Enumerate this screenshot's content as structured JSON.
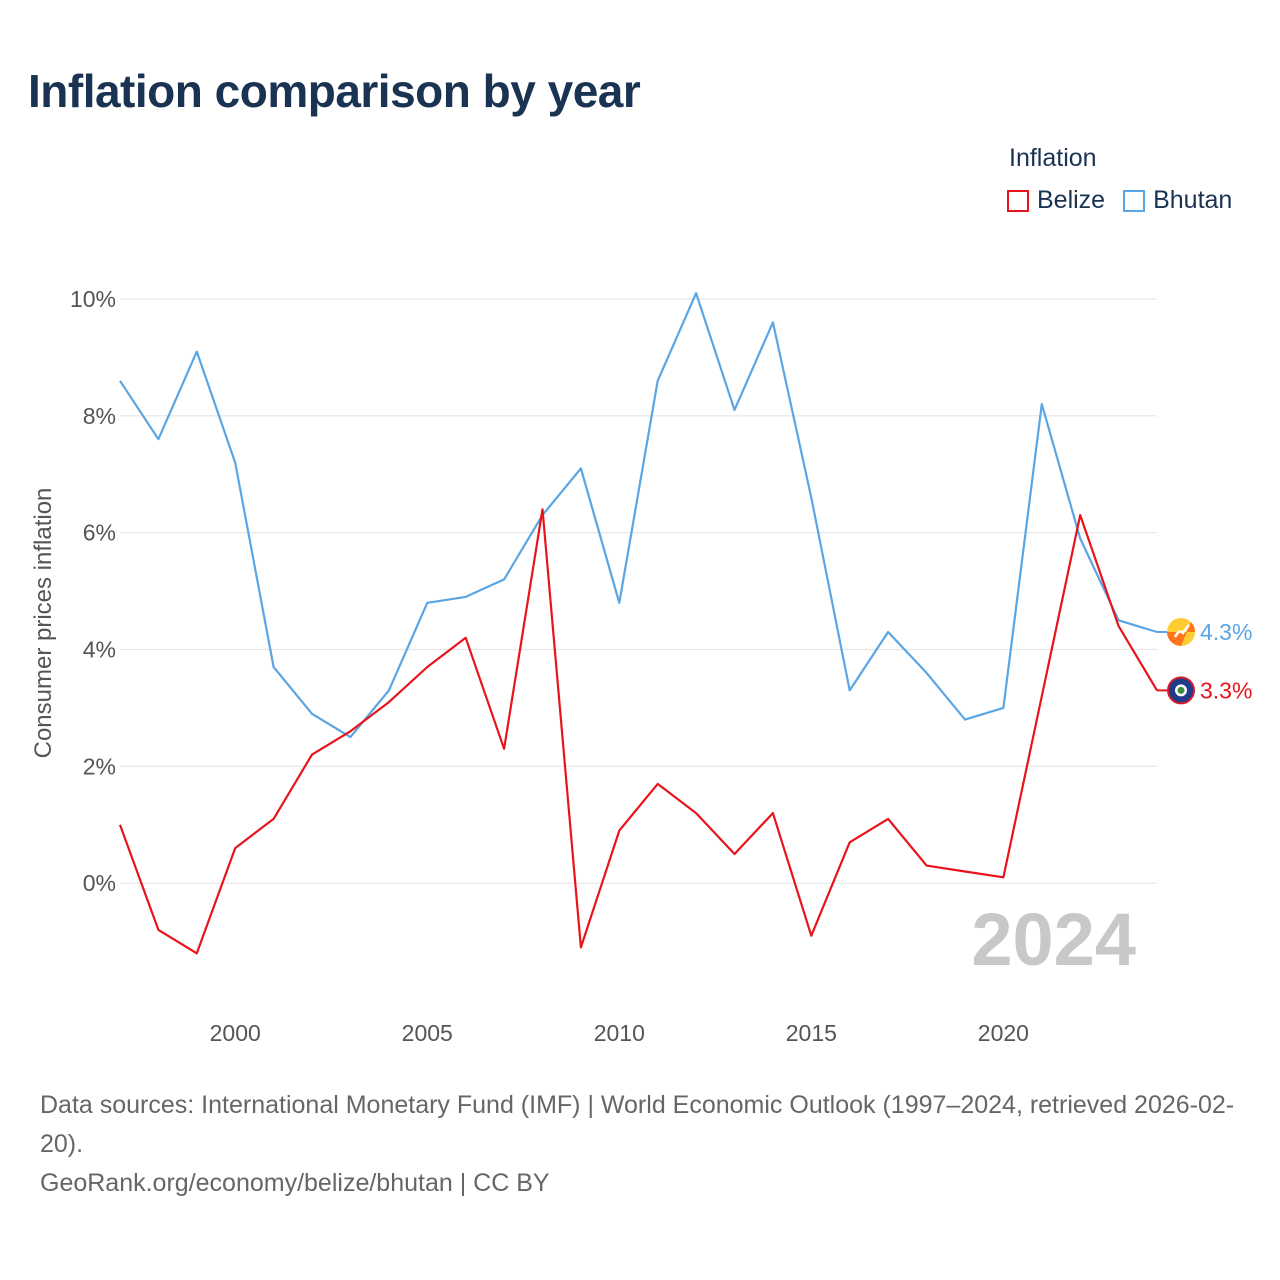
{
  "header": {
    "title": "Inflation comparison by year"
  },
  "legend": {
    "title": "Inflation",
    "items": [
      {
        "name": "Belize",
        "color": "#e8141b"
      },
      {
        "name": "Bhutan",
        "color": "#5aa5e3"
      }
    ]
  },
  "footer": {
    "source": "Data sources: International Monetary Fund (IMF) | World Economic Outlook (1997–2024, retrieved 2026-02-20).",
    "credit": "GeoRank.org/economy/belize/bhutan | CC BY"
  },
  "chart_data": {
    "type": "line",
    "title": "Inflation comparison by year",
    "xlabel": "",
    "ylabel": "Consumer prices inflation",
    "current_year_label": "2024",
    "xlim": [
      1997,
      2024
    ],
    "ylim": [
      -2,
      10
    ],
    "x_ticks": [
      2000,
      2005,
      2010,
      2015,
      2020
    ],
    "y_ticks": [
      0,
      2,
      4,
      6,
      8,
      10
    ],
    "y_tick_labels": [
      "0%",
      "2%",
      "4%",
      "6%",
      "8%",
      "10%"
    ],
    "x": [
      1997,
      1998,
      1999,
      2000,
      2001,
      2002,
      2003,
      2004,
      2005,
      2006,
      2007,
      2008,
      2009,
      2010,
      2011,
      2012,
      2013,
      2014,
      2015,
      2016,
      2017,
      2018,
      2019,
      2020,
      2021,
      2022,
      2023,
      2024
    ],
    "series": [
      {
        "name": "Bhutan",
        "color": "#5aa5e3",
        "end_label": "4.3%",
        "values": [
          8.6,
          7.6,
          9.1,
          7.2,
          3.7,
          2.9,
          2.5,
          3.3,
          4.8,
          4.9,
          5.2,
          6.3,
          7.1,
          4.8,
          8.6,
          10.1,
          8.1,
          9.6,
          6.6,
          3.3,
          4.3,
          3.6,
          2.8,
          3.0,
          8.2,
          5.9,
          4.5,
          4.3
        ]
      },
      {
        "name": "Belize",
        "color": "#e8141b",
        "end_label": "3.3%",
        "values": [
          1.0,
          -0.8,
          -1.2,
          0.6,
          1.1,
          2.2,
          2.6,
          3.1,
          3.7,
          4.2,
          2.3,
          6.4,
          -1.1,
          0.9,
          1.7,
          1.2,
          0.5,
          1.2,
          -0.9,
          0.7,
          1.1,
          0.3,
          0.2,
          0.1,
          3.2,
          6.3,
          4.4,
          3.3
        ]
      }
    ]
  }
}
